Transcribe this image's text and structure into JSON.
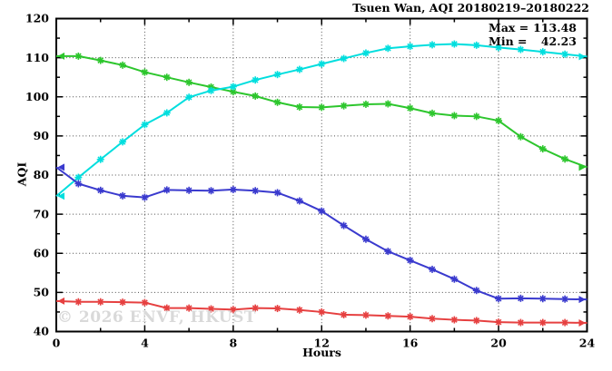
{
  "title": "Tsuen Wan, AQI 20180219–20180222",
  "watermark": "© 2026 ENVF, HKUST",
  "annotations": {
    "max_label": "Max =",
    "max_value": "113.48",
    "min_label": "Min =",
    "min_value": "42.23"
  },
  "chart_data": {
    "type": "line",
    "title": "Tsuen Wan, AQI 20180219–20180222",
    "xlabel": "Hours",
    "ylabel": "AQI",
    "xlim": [
      0,
      24
    ],
    "ylim": [
      40,
      120
    ],
    "xticks_major": [
      0,
      4,
      8,
      12,
      16,
      20,
      24
    ],
    "xticks_minor": [
      2,
      6,
      10,
      14,
      18,
      22
    ],
    "yticks_major": [
      40,
      50,
      60,
      70,
      80,
      90,
      100,
      110,
      120
    ],
    "yticks_minor": [
      45,
      55,
      65,
      75,
      85,
      95,
      105,
      115
    ],
    "grid": "dotted-at-major-ticks",
    "legend_position": "none",
    "marker_style": "asterisk",
    "end_arrows": true,
    "max": 113.48,
    "min": 42.23,
    "x": [
      0,
      1,
      2,
      3,
      4,
      5,
      6,
      7,
      8,
      9,
      10,
      11,
      12,
      13,
      14,
      15,
      16,
      17,
      18,
      19,
      20,
      21,
      22,
      23,
      24
    ],
    "series": [
      {
        "name": "green-series",
        "color": "#2dc62d",
        "values": [
          110.4,
          110.4,
          109.3,
          108.1,
          106.3,
          105.0,
          103.7,
          102.5,
          101.3,
          100.2,
          98.6,
          97.4,
          97.3,
          97.7,
          98.1,
          98.2,
          97.1,
          95.8,
          95.2,
          95.0,
          93.9,
          89.8,
          86.7,
          84.1,
          82.0
        ]
      },
      {
        "name": "cyan-series",
        "color": "#00dede",
        "values": [
          74.6,
          79.4,
          84.0,
          88.5,
          92.9,
          95.9,
          99.9,
          101.6,
          102.6,
          104.3,
          105.7,
          107.0,
          108.4,
          109.8,
          111.2,
          112.4,
          112.9,
          113.3,
          113.5,
          113.2,
          112.6,
          112.1,
          111.5,
          110.9,
          110.3
        ]
      },
      {
        "name": "blue-series",
        "color": "#3a3ace",
        "values": [
          82.0,
          77.8,
          76.1,
          74.7,
          74.3,
          76.2,
          76.1,
          76.0,
          76.3,
          76.0,
          75.5,
          73.4,
          70.8,
          67.1,
          63.6,
          60.5,
          58.2,
          55.9,
          53.4,
          50.5,
          48.4,
          48.5,
          48.4,
          48.3,
          48.2
        ]
      },
      {
        "name": "red-series",
        "color": "#e64040",
        "values": [
          47.8,
          47.6,
          47.6,
          47.5,
          47.4,
          46.0,
          46.0,
          45.8,
          45.6,
          46.0,
          45.9,
          45.5,
          45.0,
          44.3,
          44.2,
          44.0,
          43.8,
          43.3,
          43.0,
          42.8,
          42.4,
          42.3,
          42.3,
          42.3,
          42.2
        ]
      }
    ]
  }
}
